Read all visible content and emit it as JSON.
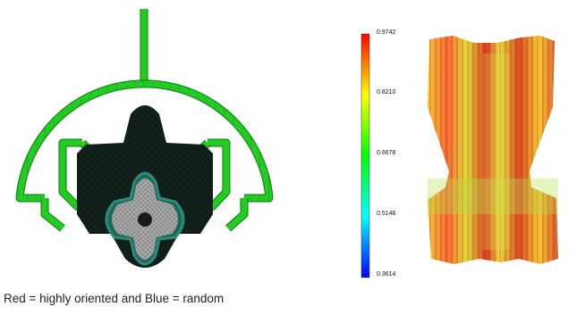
{
  "colorbar": {
    "ticks": [
      "0.9742",
      "0.8210",
      "0.6678",
      "0.5146",
      "0.3614"
    ],
    "colors": [
      "#ff0000",
      "#ffff00",
      "#00ff00",
      "#00ffff",
      "#0000ff"
    ]
  },
  "caption": "Red = highly oriented and Blue = random",
  "mesh_colors": {
    "runner": "#22cc22",
    "runner_edge": "#0a7a0a",
    "body": "#0c1a14",
    "gear": "#9a9a9a"
  }
}
